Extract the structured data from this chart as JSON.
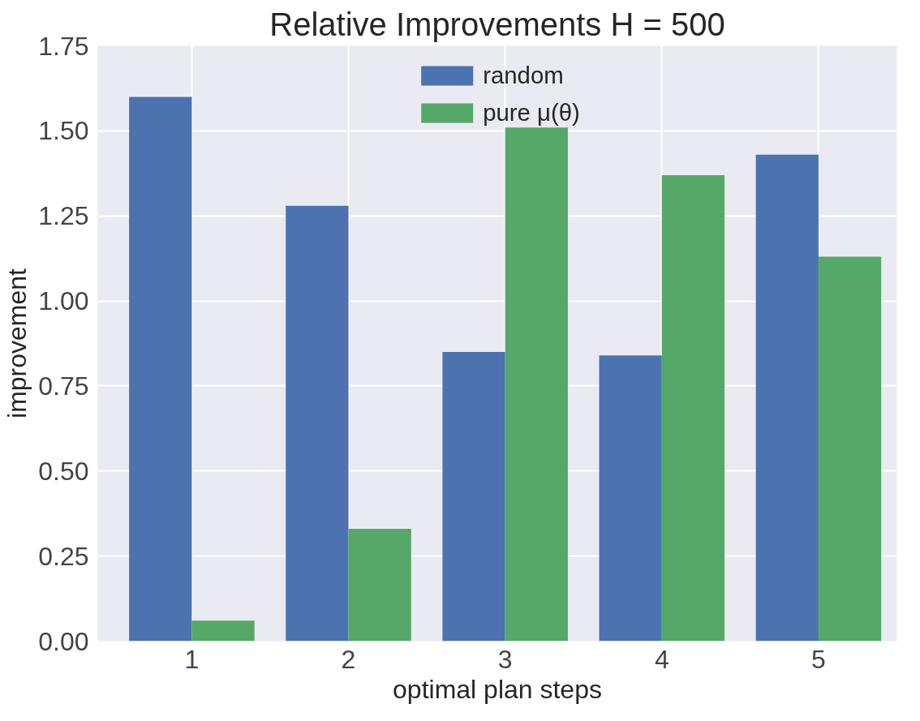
{
  "chart_data": {
    "type": "bar",
    "title": "Relative Improvements H = 500",
    "xlabel": "optimal plan steps",
    "ylabel": "improvement",
    "categories": [
      "1",
      "2",
      "3",
      "4",
      "5"
    ],
    "series": [
      {
        "name": "random",
        "color": "#4c72b0",
        "values": [
          1.6,
          1.28,
          0.85,
          0.84,
          1.43
        ]
      },
      {
        "name": "pure μ(θ)",
        "color": "#55a868",
        "values": [
          0.06,
          0.33,
          1.51,
          1.37,
          1.13
        ]
      }
    ],
    "ylim": [
      0,
      1.75
    ],
    "yticks": [
      {
        "value": 0,
        "label": "0.00"
      },
      0.25,
      {
        "value": 0.5,
        "label": "0.50"
      },
      0.75,
      {
        "value": 1,
        "label": "1.00"
      },
      1.25,
      {
        "value": 1.5,
        "label": "1.50"
      },
      1.75
    ],
    "grid": true,
    "legend": "top"
  }
}
